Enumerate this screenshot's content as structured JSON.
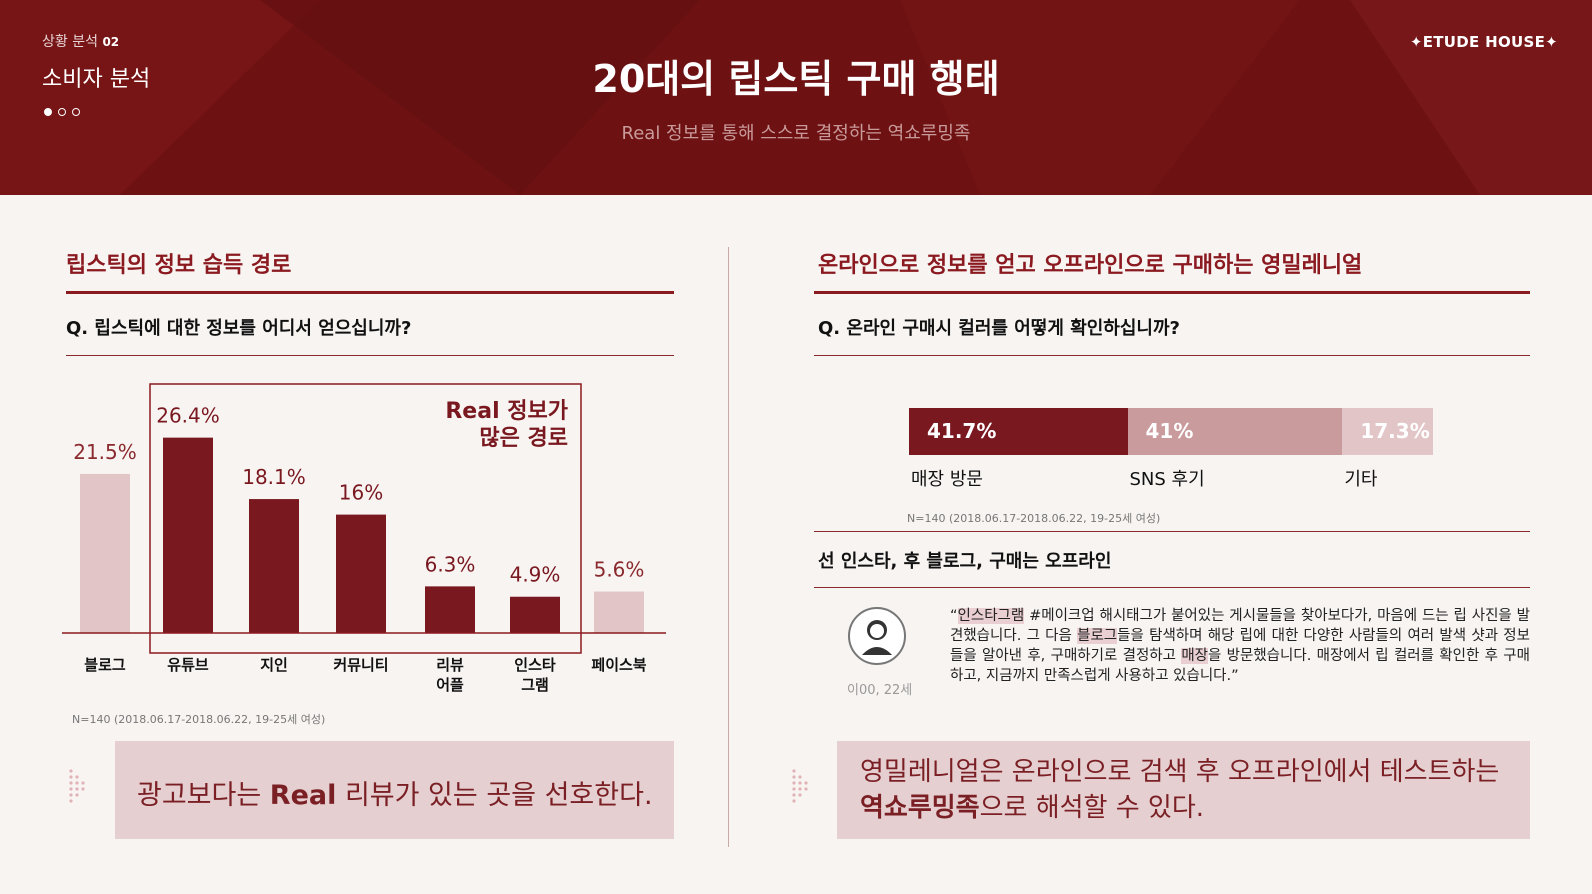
{
  "header": {
    "section_label": "상황 분석",
    "section_number": "02",
    "section_title": "소비자 분석",
    "brand": "✦ETUDE HOUSE✦",
    "title": "20대의 립스틱 구매 행태",
    "subtitle": "Real 정보를 통해 스스로 결정하는 역쇼루밍족"
  },
  "left": {
    "section_title": "립스틱의 정보 습득 경로",
    "question": "Q. 립스틱에 대한 정보를 어디서 얻으십니까?",
    "highlight_label_line1": "Real 정보가",
    "highlight_label_line2": "많은 경로",
    "note": "N=140 (2018.06.17-2018.06.22, 19-25세 여성)",
    "callout_pre": "광고보다는 ",
    "callout_bold": "Real",
    "callout_post": " 리뷰가 있는 곳을 선호한다."
  },
  "right": {
    "section_title": "온라인으로 정보를 얻고 오프라인으로 구매하는 영밀레니얼",
    "question": "Q. 온라인 구매시 컬러를 어떻게 확인하십니까?",
    "note": "N=140 (2018.06.17-2018.06.22, 19-25세 여성)",
    "subheading": "선 인스타, 후 블로그, 구매는 오프라인",
    "quote_parts": [
      "“",
      "인스타그램",
      " #메이크업 해시태그가 붙어있는 게시물들을 찾아보다가, 마음에 드는 립 사진을 발견했습니다. 그 다음 ",
      "블로그",
      "들을 탐색하며 해당 립에 대한 다양한 사람들의 여러 발색 샷과 정보들을 알아낸 후, 구매하기로 결정하고 ",
      "매장",
      "을 방문했습니다. 매장에서 립 컬러를 확인한 후 구매하고, 지금까지 만족스럽게 사용하고 있습니다.”"
    ],
    "respondent": "이00, 22세",
    "callout_line1": "영밀레니얼은 온라인으로 검색 후 오프라인에서 테스트하는",
    "callout_bold": "역쇼루밍족",
    "callout_post": "으로 해석할 수 있다."
  },
  "colors": {
    "header_bg": "#6e1113",
    "accent": "#7a1820",
    "bar_dark": "#7a1820",
    "bar_light": "#e2c5c7",
    "stack_mid": "#c99b9d",
    "stack_light": "#e2c5c7",
    "callout_bg": "#e5cfd0"
  },
  "chart_data": [
    {
      "type": "bar",
      "categories": [
        "블로그",
        "유튜브",
        "지인",
        "커뮤니티",
        "리뷰\n어플",
        "인스타\n그램",
        "페이스북"
      ],
      "values": [
        21.5,
        26.4,
        18.1,
        16,
        6.3,
        4.9,
        5.6
      ],
      "value_labels": [
        "21.5%",
        "26.4%",
        "18.1%",
        "16%",
        "6.3%",
        "4.9%",
        "5.6%"
      ],
      "highlighted": [
        false,
        true,
        true,
        true,
        true,
        true,
        false
      ],
      "ylim": [
        0,
        30
      ],
      "grid": false
    },
    {
      "type": "bar",
      "orientation": "horizontal-stacked",
      "categories": [
        "매장 방문",
        "SNS 후기",
        "기타"
      ],
      "values": [
        41.7,
        41,
        17.3
      ],
      "value_labels": [
        "41.7%",
        "41%",
        "17.3%"
      ]
    }
  ]
}
